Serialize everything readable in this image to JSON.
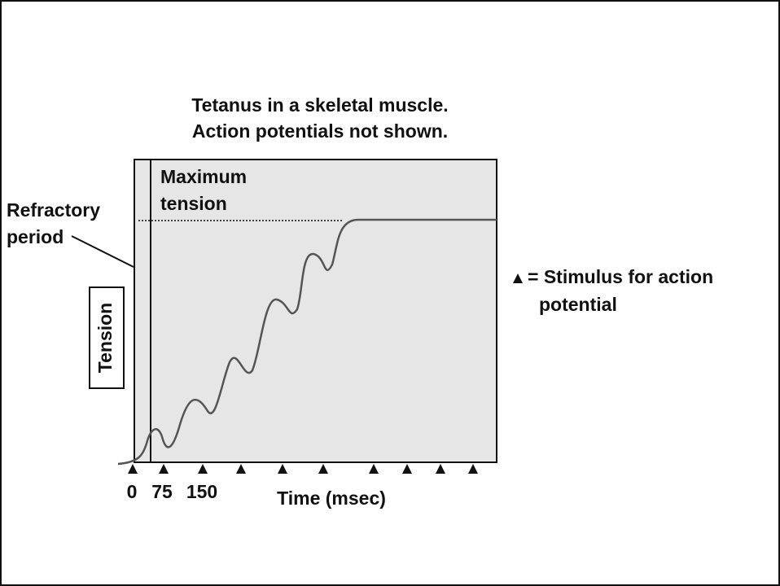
{
  "title": [
    "Tetanus in a skeletal muscle.",
    "Action potentials not shown."
  ],
  "y_axis_label": "Tension",
  "x_axis_label": "Time (msec)",
  "x_tick_labels": [
    "0",
    "75",
    "150"
  ],
  "annotations": {
    "refractory_period": [
      "Refractory",
      "period"
    ],
    "maximum_tension": [
      "Maximum",
      "tension"
    ]
  },
  "legend": [
    "= Stimulus for action",
    "potential"
  ]
}
